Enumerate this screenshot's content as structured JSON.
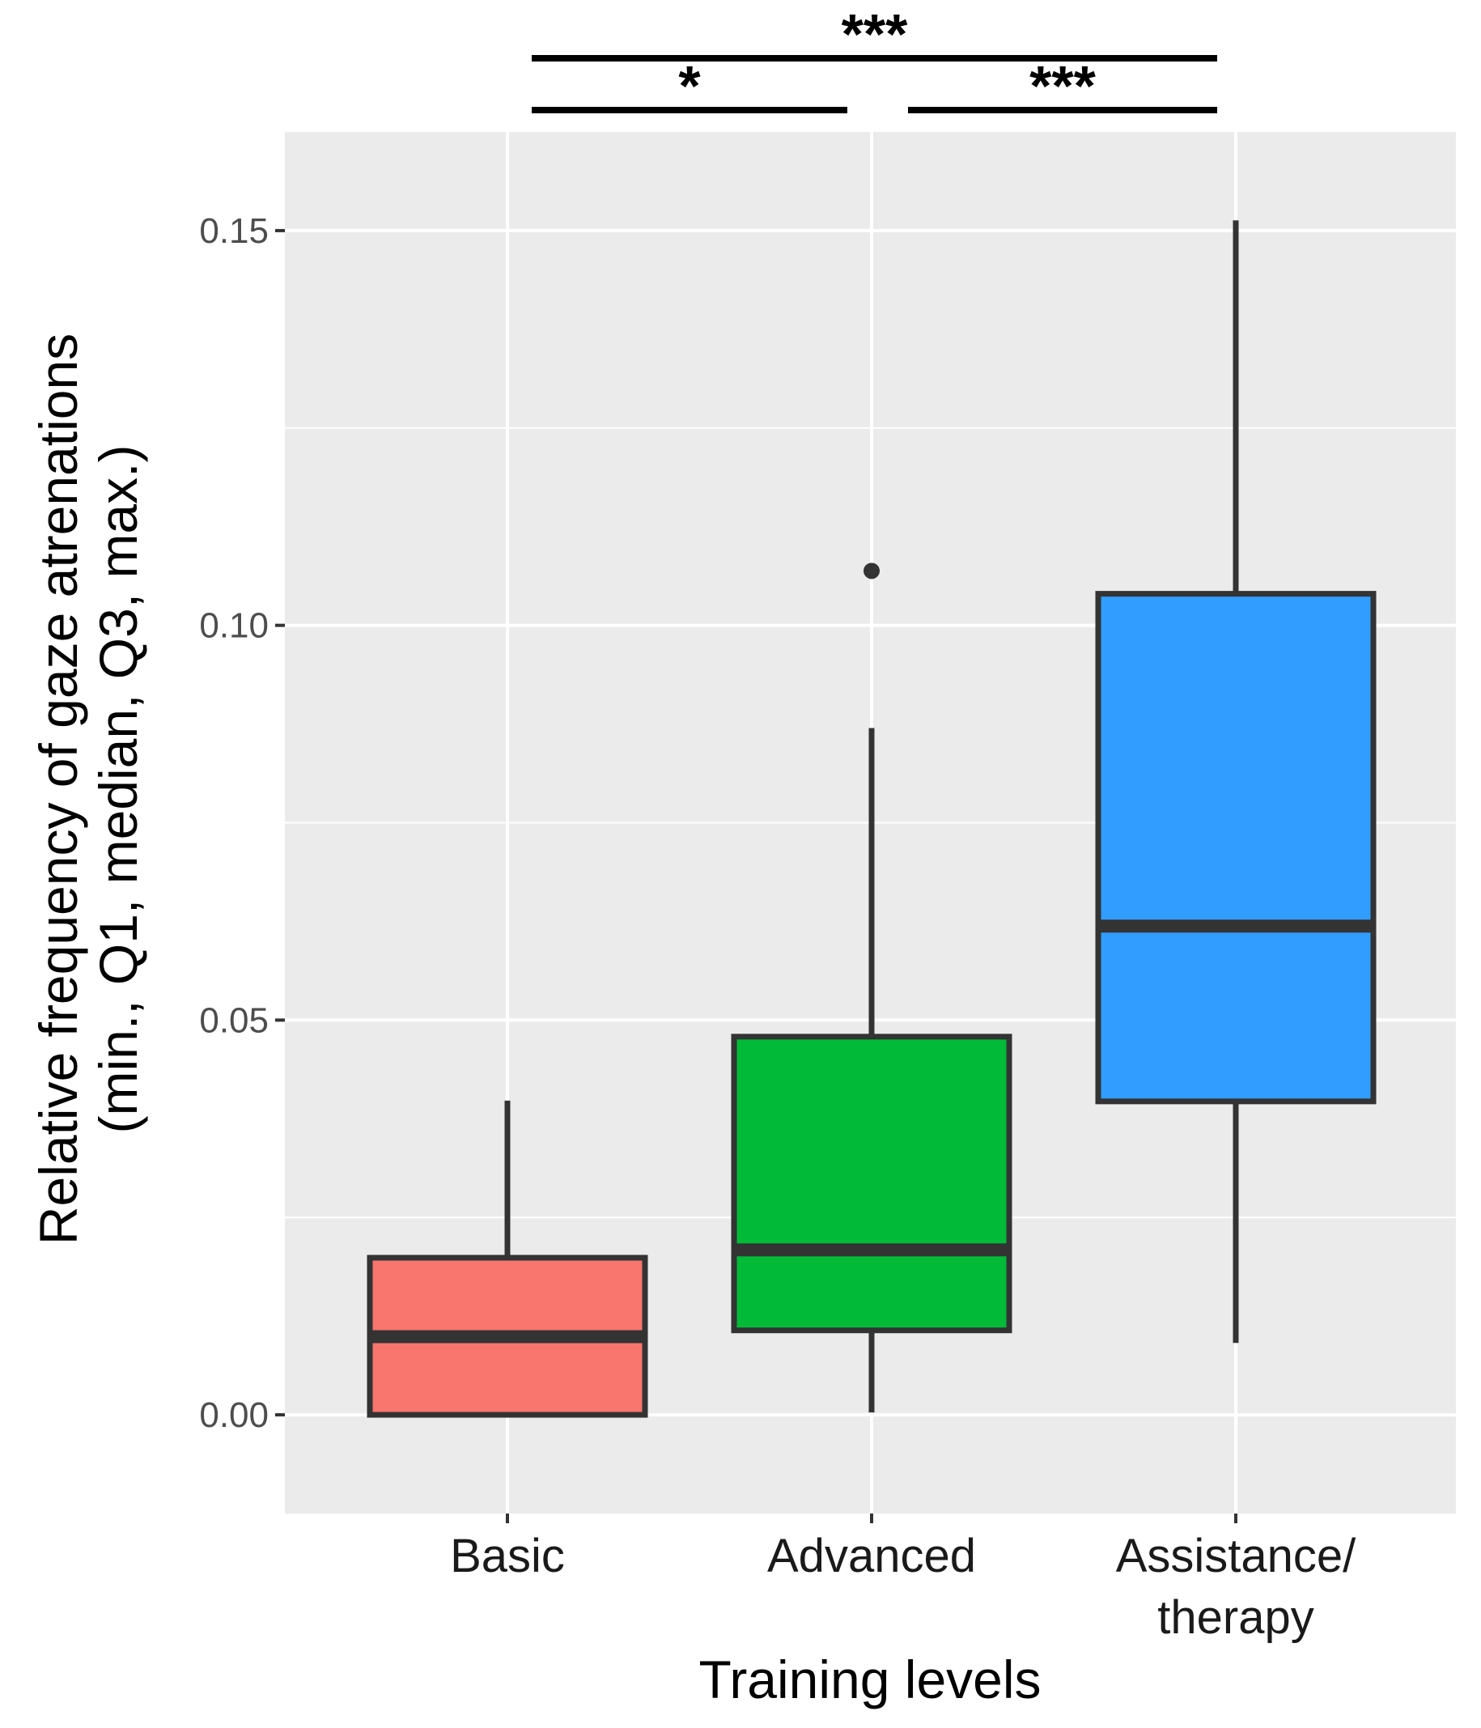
{
  "chart_data": {
    "type": "boxplot",
    "title": "",
    "xlabel": "Training levels",
    "ylabel_lines": [
      "Relative frequency of gaze atrenations",
      "(min., Q1, median, Q3, max.)"
    ],
    "ylim": [
      -0.0125,
      0.1625
    ],
    "yticks": [
      {
        "value": 0.0,
        "label": "0.00"
      },
      {
        "value": 0.05,
        "label": "0.05"
      },
      {
        "value": 0.1,
        "label": "0.10"
      },
      {
        "value": 0.15,
        "label": "0.15"
      }
    ],
    "yminor": [
      0.025,
      0.075,
      0.125
    ],
    "grid": true,
    "categories": [
      {
        "name": "Basic",
        "label_lines": [
          "Basic"
        ],
        "min": 0.0,
        "q1": 0.0,
        "median": 0.0099,
        "q3": 0.0199,
        "max": 0.0398,
        "outliers": [],
        "color": "#F8766D"
      },
      {
        "name": "Advanced",
        "label_lines": [
          "Advanced"
        ],
        "min": 0.0003,
        "q1": 0.0107,
        "median": 0.0209,
        "q3": 0.0479,
        "max": 0.087,
        "outliers": [
          0.1069
        ],
        "color": "#00BA38"
      },
      {
        "name": "Assistance/ therapy",
        "label_lines": [
          "Assistance/",
          "therapy"
        ],
        "min": 0.0091,
        "q1": 0.0397,
        "median": 0.0619,
        "q3": 0.104,
        "max": 0.1513,
        "outliers": [],
        "color": "#319DFF"
      }
    ],
    "significance": [
      {
        "from": 0,
        "to": 2,
        "label": "***",
        "level": 2
      },
      {
        "from": 0,
        "to": 1,
        "label": "*",
        "level": 1
      },
      {
        "from": 1,
        "to": 2,
        "label": "***",
        "level": 1
      }
    ]
  }
}
